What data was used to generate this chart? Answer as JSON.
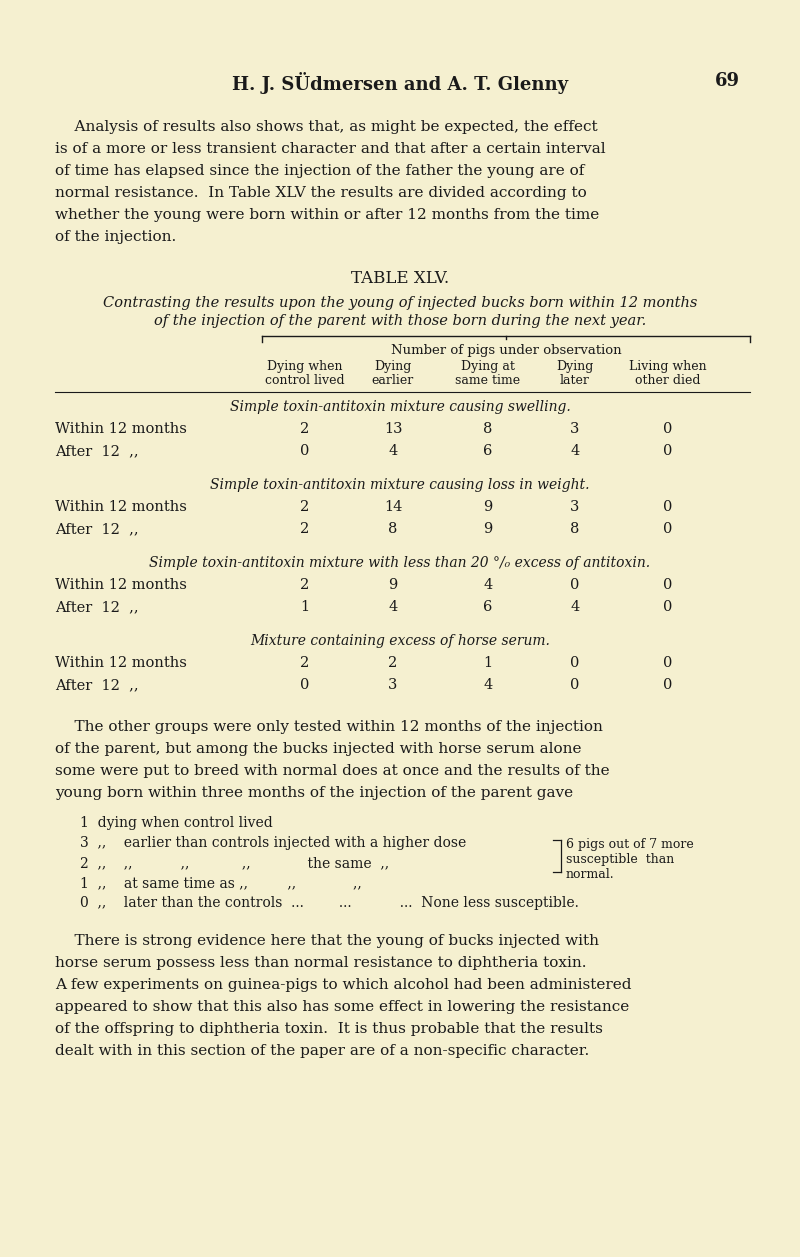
{
  "bg_color": "#f5f0d0",
  "text_color": "#1a1a1a",
  "page_header_left": "H. J. SÜdmersen and A. T. Glenny",
  "page_number": "69",
  "intro_paragraph": "Analysis of results also shows that, as might be expected, the effect is of a more or less transient character and that after a certain interval of time has elapsed since the injection of the father the young are of normal resistance.  In Table XLV the results are divided according to whether the young were born within or after 12 months from the time of the injection.",
  "table_title": "TABLE XLV.",
  "table_subtitle_line1": "Contrasting the results upon the young of injected bucks born within 12 months",
  "table_subtitle_line2": "of the injection of the parent with those born during the next year.",
  "col_header_top": "Number of pigs under observation",
  "col_headers": [
    "Dying when\ncontrol lived",
    "Dying\nearlier",
    "Dying at\nsame time",
    "Dying\nlater",
    "Living when\nother died"
  ],
  "section1_title": "Simple toxin-antitoxin mixture causing swelling.",
  "section1_rows": [
    [
      "Within 12 months",
      "2",
      "13",
      "8",
      "3",
      "0"
    ],
    [
      "After  12  ,,",
      "0",
      "4",
      "6",
      "4",
      "0"
    ]
  ],
  "section2_title": "Simple toxin-antitoxin mixture causing loss in weight.",
  "section2_rows": [
    [
      "Within 12 months",
      "2",
      "14",
      "9",
      "3",
      "0"
    ],
    [
      "After  12  ,,",
      "2",
      "8",
      "9",
      "8",
      "0"
    ]
  ],
  "section3_title": "Simple toxin-antitoxin mixture with less than 20 °/₀ excess of antitoxin.",
  "section3_rows": [
    [
      "Within 12 months",
      "2",
      "9",
      "4",
      "0",
      "0"
    ],
    [
      "After  12  ,,",
      "1",
      "4",
      "6",
      "4",
      "0"
    ]
  ],
  "section4_title": "Mixture containing excess of horse serum.",
  "section4_rows": [
    [
      "Within 12 months",
      "2",
      "2",
      "1",
      "0",
      "0"
    ],
    [
      "After  12  ,,",
      "0",
      "3",
      "4",
      "0",
      "0"
    ]
  ],
  "para2": "The other groups were only tested within 12 months of the injection of the parent, but among the bucks injected with horse serum alone some were put to breed with normal does at once and the results of the young born within three months of the injection of the parent gave",
  "brace_text_line1": "6 pigs out of 7 more",
  "brace_text_line2": "susceptible  than",
  "brace_text_line3": "normal.",
  "para3": "There is strong evidence here that the young of bucks injected with horse serum possess less than normal resistance to diphtheria toxin. A few experiments on guinea-pigs to which alcohol had been administered appeared to show that this also has some effect in lowering the resistance of the offspring to diphtheria toxin.  It is thus probable that the results dealt with in this section of the paper are of a non-specific character."
}
